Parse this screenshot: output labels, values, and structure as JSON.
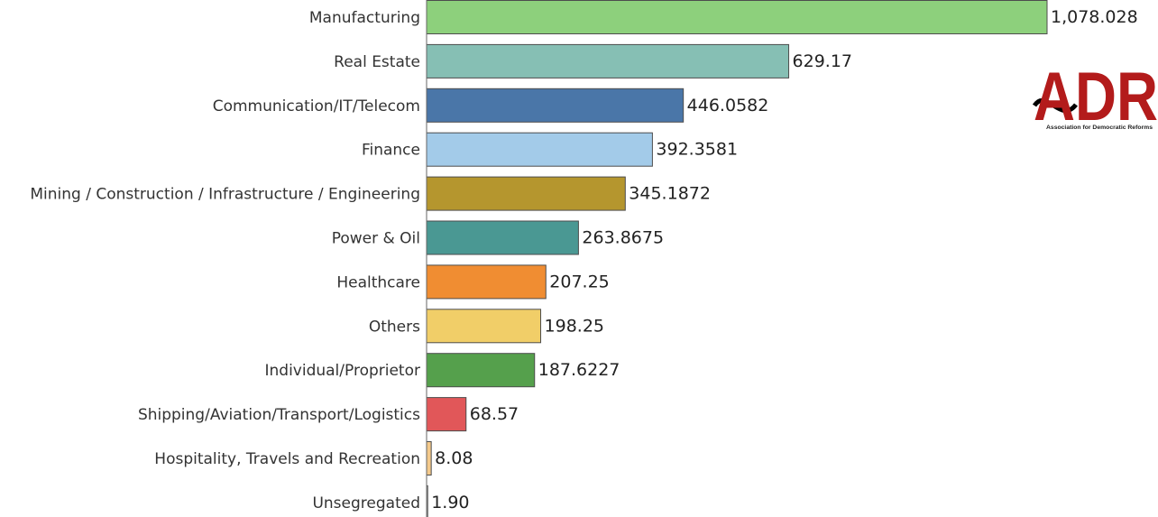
{
  "chart_data": {
    "type": "bar",
    "orientation": "horizontal",
    "categories": [
      "Manufacturing",
      "Real Estate",
      "Communication/IT/Telecom",
      "Finance",
      "Mining / Construction / Infrastructure / Engineering",
      "Power & Oil",
      "Healthcare",
      "Others",
      "Individual/Proprietor",
      "Shipping/Aviation/Transport/Logistics",
      "Hospitality, Travels and Recreation",
      "Unsegregated"
    ],
    "values": [
      1078.028,
      629.17,
      446.0582,
      392.3581,
      345.1872,
      263.8675,
      207.25,
      198.25,
      187.6227,
      68.57,
      8.08,
      1.9
    ],
    "value_labels": [
      "1,078.028",
      "629.17",
      "446.0582",
      "392.3581",
      "345.1872",
      "263.8675",
      "207.25",
      "198.25",
      "187.6227",
      "68.57",
      "8.08",
      "1.90"
    ],
    "colors": [
      "#8dd07c",
      "#86bfb4",
      "#4a76a8",
      "#a3cbe9",
      "#b5962e",
      "#4a9893",
      "#f08d32",
      "#f1ce68",
      "#55a04c",
      "#e15759",
      "#f4c98b",
      "#d7d7d7"
    ],
    "xlim": [
      0,
      1078.028
    ],
    "title": "",
    "xlabel": "",
    "ylabel": "",
    "grid": false,
    "legend": "none"
  },
  "logo": {
    "letters": "ADR",
    "subtitle": "Association for Democratic Reforms"
  }
}
